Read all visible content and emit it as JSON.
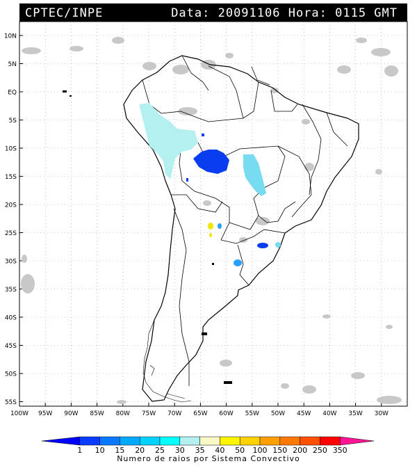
{
  "header": {
    "title": "CPTEC/INPE",
    "stamp": "Data: 20091106 Hora: 0115 GMT"
  },
  "map": {
    "lat_labels": [
      "10N",
      "5N",
      "EQ",
      "5S",
      "10S",
      "15S",
      "20S",
      "25S",
      "30S",
      "35S",
      "40S",
      "45S",
      "50S",
      "55S"
    ],
    "lon_labels": [
      "100W",
      "95W",
      "90W",
      "85W",
      "80W",
      "75W",
      "70W",
      "65W",
      "60W",
      "55W",
      "50W",
      "45W",
      "40W",
      "35W",
      "30W"
    ]
  },
  "legend": {
    "values": [
      "1",
      "10",
      "15",
      "20",
      "25",
      "30",
      "35",
      "40",
      "50",
      "100",
      "150",
      "200",
      "250",
      "350"
    ],
    "colors": [
      "#0000ff",
      "#0a3cff",
      "#0a78ff",
      "#00aaff",
      "#00d2ff",
      "#00ffff",
      "#b4f0f0",
      "#fafac8",
      "#fff500",
      "#ffd200",
      "#ffa000",
      "#ff7800",
      "#ff5000",
      "#ff0000",
      "#ff1493"
    ],
    "caption": "Numero de raios por Sistema Convectivo"
  },
  "colors": {
    "cloud": "#c8c8c8",
    "cell_deep": "#0a3cf0",
    "cell_mid": "#28a0ff",
    "cell_light": "#b4f0f0",
    "cell_cyan": "#78dcf0",
    "cell_yellow": "#f0e600"
  }
}
